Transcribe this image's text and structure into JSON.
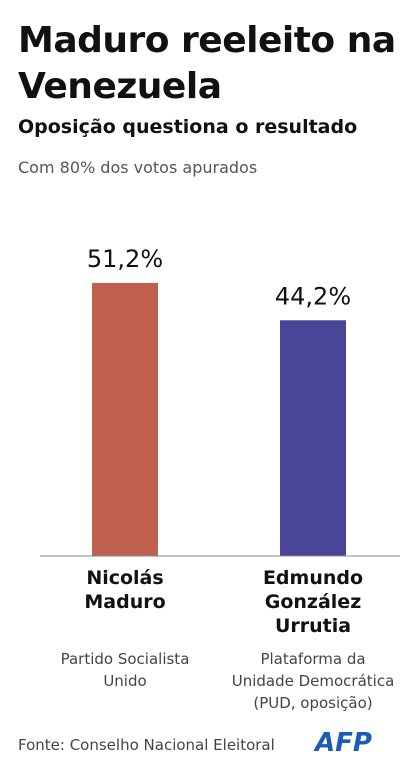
{
  "chart_data": {
    "type": "bar",
    "title": "Maduro reeleito na Venezuela",
    "subtitle": "Oposição questiona o resultado",
    "note": "Com 80% dos votos apurados",
    "categories": [
      "Nicolás Maduro",
      "Edmundo González Urrutia"
    ],
    "category_notes": [
      "Partido Socialista Unido",
      "Plataforma da Unidade Democrática (PUD, oposição)"
    ],
    "values": [
      51.2,
      44.2
    ],
    "value_labels": [
      "51,2%",
      "44,2%"
    ],
    "colors": [
      "#c0604f",
      "#4b4597"
    ],
    "ylim": [
      0,
      60
    ],
    "source": "Fonte: Conselho Nacional Eleitoral",
    "logo": "AFP"
  }
}
